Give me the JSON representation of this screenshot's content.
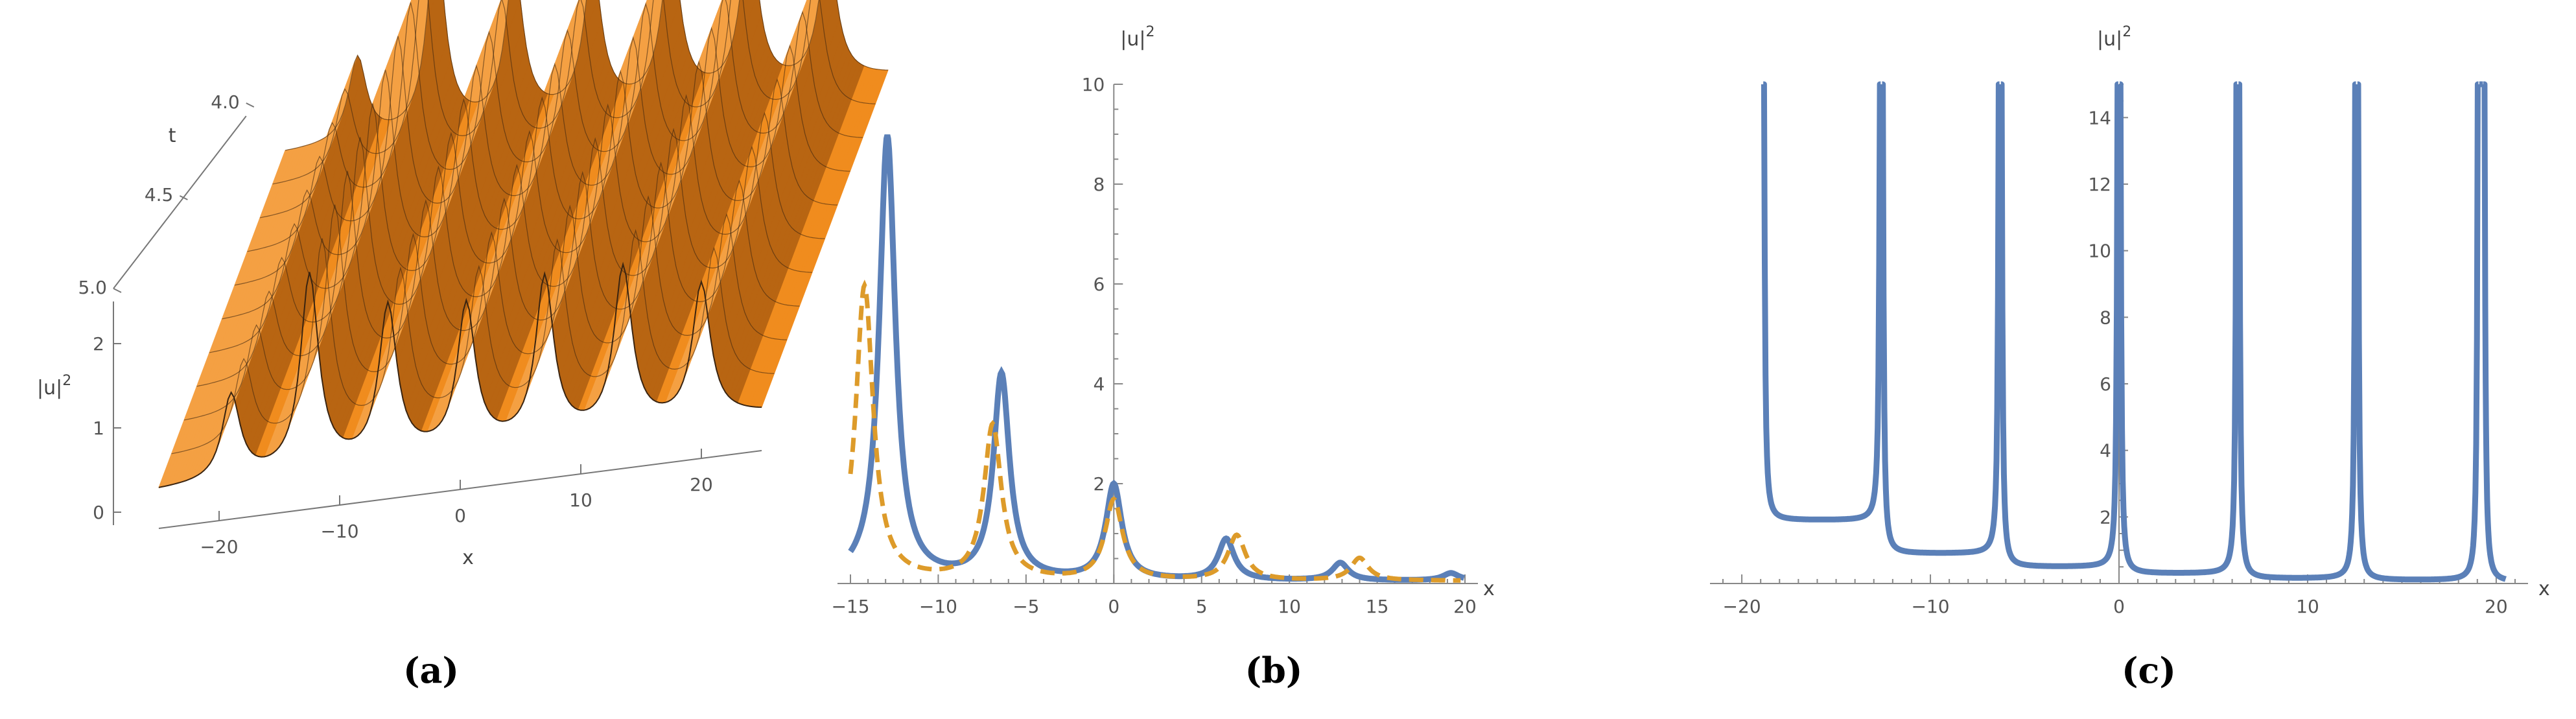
{
  "captions": [
    "(a)",
    "(b)",
    "(c)"
  ],
  "colors": {
    "blue": "#5b80b8",
    "orange": "#dd9b2a",
    "surface": "#f08c1e",
    "axis": "#888888"
  },
  "chart_data": [
    {
      "type": "surface3d",
      "xlabel": "x",
      "ylabel": "t",
      "zlabel": "|u|^2",
      "x_ticks": [
        "−20",
        "−10",
        "0",
        "10",
        "20"
      ],
      "t_ticks": [
        "4.0",
        "4.5",
        "5.0"
      ],
      "z_ticks": [
        "0",
        "1",
        "2"
      ],
      "xlim": [
        -25,
        25
      ],
      "tlim": [
        4.0,
        5.0
      ],
      "zlim": [
        0,
        2.5
      ],
      "peak_x": [
        -19,
        -12.5,
        -6,
        0.5,
        7,
        13.5,
        20
      ],
      "peak_heights": [
        1.0,
        2.3,
        1.8,
        1.7,
        1.9,
        1.9,
        1.6
      ],
      "baseline": 0.6
    },
    {
      "type": "line",
      "xlabel": "x",
      "ylabel": "|u|^2",
      "xlim": [
        -15,
        20
      ],
      "ylim": [
        0,
        10
      ],
      "x_ticks": [
        "−15",
        "−10",
        "−5",
        "0",
        "5",
        "10",
        "15",
        "20"
      ],
      "y_ticks": [
        "2",
        "4",
        "6",
        "8",
        "10"
      ],
      "series": [
        {
          "style": "solid",
          "color": "#5b80b8",
          "peaks": [
            {
              "x": -12.9,
              "y": 8.9
            },
            {
              "x": -6.4,
              "y": 4.1
            },
            {
              "x": 0.0,
              "y": 1.9
            },
            {
              "x": 6.4,
              "y": 0.82
            },
            {
              "x": 12.9,
              "y": 0.35
            },
            {
              "x": 19.2,
              "y": 0.15
            }
          ],
          "minima": [
            {
              "x": -9.6,
              "y": 0.72
            },
            {
              "x": -3.2,
              "y": 0.45
            },
            {
              "x": 3.2,
              "y": 0.3
            },
            {
              "x": 9.6,
              "y": 0.1
            },
            {
              "x": 16.0,
              "y": 0.05
            }
          ]
        },
        {
          "style": "dashed",
          "color": "#dd9b2a",
          "peaks": [
            {
              "x": -14.2,
              "y": 5.9
            },
            {
              "x": -6.9,
              "y": 3.1
            },
            {
              "x": 0.0,
              "y": 1.6
            },
            {
              "x": 7.0,
              "y": 0.9
            },
            {
              "x": 14.0,
              "y": 0.45
            }
          ],
          "minima": [
            {
              "x": -10.8,
              "y": 0.4
            },
            {
              "x": -3.3,
              "y": 0.25
            },
            {
              "x": 3.6,
              "y": 0.2
            },
            {
              "x": 10.5,
              "y": 0.06
            },
            {
              "x": 18.0,
              "y": 0.05
            }
          ]
        }
      ]
    },
    {
      "type": "line",
      "xlabel": "x",
      "ylabel": "|u|^2",
      "xlim": [
        -21,
        21
      ],
      "ylim": [
        0,
        15
      ],
      "x_ticks": [
        "−20",
        "−10",
        "0",
        "10",
        "20"
      ],
      "y_ticks": [
        "2",
        "4",
        "6",
        "8",
        "10",
        "12",
        "14"
      ],
      "series": [
        {
          "style": "solid",
          "color": "#5b80b8",
          "poles": [
            -18.9,
            -12.6,
            -6.3,
            0.0,
            6.3,
            12.6,
            19.1,
            19.3
          ],
          "minima": [
            {
              "x": -15.8,
              "y": 1.9
            },
            {
              "x": -9.5,
              "y": 0.9
            },
            {
              "x": -3.1,
              "y": 0.5
            },
            {
              "x": 3.2,
              "y": 0.3
            },
            {
              "x": 9.5,
              "y": 0.15
            },
            {
              "x": 15.8,
              "y": 0.1
            }
          ]
        }
      ]
    }
  ]
}
